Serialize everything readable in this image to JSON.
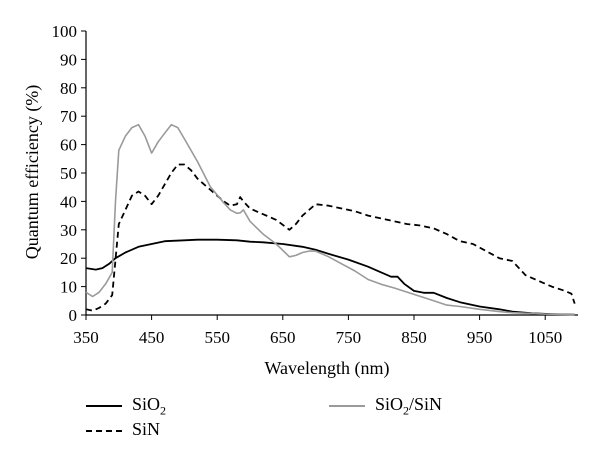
{
  "chart_data": {
    "type": "line",
    "title": "",
    "xlabel": "Wavelength (nm)",
    "ylabel": "Quantum efficiency (%)",
    "xlim": [
      350,
      1100
    ],
    "ylim": [
      0,
      100
    ],
    "xticks": [
      350,
      450,
      550,
      650,
      750,
      850,
      950,
      1050
    ],
    "yticks": [
      0,
      10,
      20,
      30,
      40,
      50,
      60,
      70,
      80,
      90,
      100
    ],
    "grid": false,
    "legend_position": "bottom",
    "series": [
      {
        "name": "SiO2",
        "label_main": "SiO",
        "label_sub": "2",
        "label_rest": "",
        "style": "solid",
        "color": "#000000",
        "x": [
          350,
          365,
          375,
          385,
          395,
          410,
          430,
          450,
          470,
          500,
          520,
          550,
          580,
          600,
          620,
          650,
          680,
          700,
          720,
          750,
          780,
          800,
          815,
          825,
          835,
          850,
          865,
          880,
          900,
          920,
          950,
          980,
          1000,
          1030,
          1060,
          1080,
          1095
        ],
        "y": [
          16.5,
          16,
          16.5,
          18,
          20,
          22,
          24,
          25,
          26,
          26.3,
          26.5,
          26.5,
          26.3,
          25.8,
          25.6,
          25,
          24,
          23,
          21.5,
          19.5,
          17,
          15,
          13.5,
          13.5,
          11,
          8.5,
          7.8,
          7.8,
          6,
          4.5,
          3,
          2,
          1.2,
          0.6,
          0.3,
          0.2,
          0.1
        ]
      },
      {
        "name": "SiN",
        "label_main": "SiN",
        "label_sub": "",
        "label_rest": "",
        "style": "dashed",
        "color": "#000000",
        "x": [
          350,
          360,
          370,
          380,
          390,
          400,
          410,
          420,
          430,
          440,
          450,
          460,
          470,
          480,
          490,
          500,
          510,
          520,
          540,
          560,
          570,
          580,
          585,
          590,
          600,
          620,
          640,
          660,
          670,
          680,
          700,
          720,
          740,
          760,
          780,
          800,
          820,
          840,
          860,
          870,
          880,
          900,
          920,
          940,
          960,
          980,
          1000,
          1020,
          1040,
          1060,
          1080,
          1090,
          1095
        ],
        "y": [
          2,
          1.5,
          2.5,
          4,
          7,
          32,
          37,
          42,
          43.5,
          42,
          39,
          42,
          46,
          50,
          53,
          53,
          51,
          48,
          44,
          40,
          38.5,
          39,
          41.5,
          40,
          37.5,
          35.5,
          33.5,
          30,
          32,
          35,
          39,
          38.5,
          37.5,
          36.5,
          35,
          34,
          33,
          32,
          31.5,
          31,
          30.5,
          28.5,
          26,
          25,
          22.5,
          20,
          19,
          14,
          12,
          10,
          8.5,
          7.5,
          4
        ]
      },
      {
        "name": "SiO2/SiN",
        "label_main": "SiO",
        "label_sub": "2",
        "label_rest": "/SiN",
        "style": "solid",
        "color": "#9a9a9a",
        "x": [
          350,
          360,
          370,
          380,
          390,
          395,
          400,
          410,
          420,
          430,
          440,
          450,
          460,
          470,
          480,
          490,
          500,
          520,
          540,
          560,
          570,
          580,
          585,
          590,
          600,
          620,
          640,
          660,
          670,
          680,
          690,
          700,
          720,
          740,
          760,
          780,
          800,
          820,
          840,
          860,
          880,
          900,
          920,
          950,
          980,
          1000,
          1050,
          1095
        ],
        "y": [
          8,
          6.5,
          8,
          11,
          15,
          40,
          58,
          63,
          66,
          67,
          63,
          57,
          61,
          64,
          67,
          66,
          62,
          54,
          45,
          39.5,
          37,
          35.8,
          36,
          37,
          33,
          28.5,
          25,
          20.5,
          21,
          22,
          22.5,
          22.5,
          20.5,
          18,
          15.5,
          12.5,
          10.8,
          9.5,
          8,
          6.5,
          5,
          3.5,
          3,
          2,
          1.2,
          0.8,
          0.3,
          0.1
        ]
      }
    ]
  }
}
